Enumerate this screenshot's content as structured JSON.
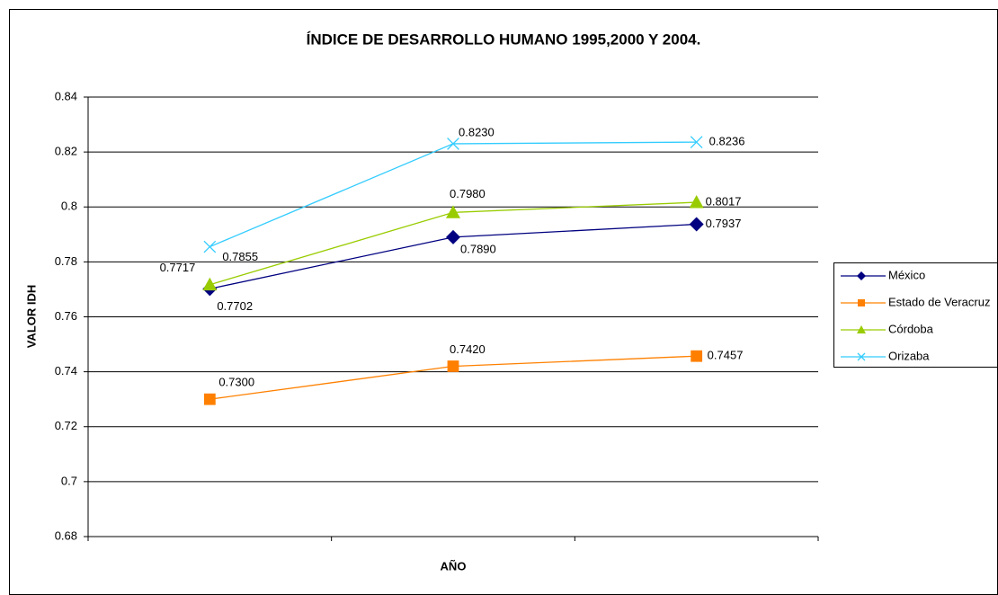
{
  "chart_data": {
    "type": "line",
    "title": "ÍNDICE DE DESARROLLO HUMANO 1995,2000 Y 2004.",
    "xlabel": "AÑO",
    "ylabel": "VALOR IDH",
    "categories": [
      null,
      null,
      null
    ],
    "series": [
      {
        "name": "México",
        "color": "#000080",
        "marker": "diamond",
        "values": [
          0.7702,
          0.789,
          0.7937
        ],
        "value_labels": [
          "0.7702",
          "0.7890",
          "0.7937"
        ]
      },
      {
        "name": "Estado de Veracruz",
        "color": "#ff8000",
        "marker": "square",
        "values": [
          0.73,
          0.742,
          0.7457
        ],
        "value_labels": [
          "0.7300",
          "0.7420",
          "0.7457"
        ]
      },
      {
        "name": "Córdoba",
        "color": "#99cc00",
        "marker": "triangle",
        "values": [
          0.7717,
          0.798,
          0.8017
        ],
        "value_labels": [
          "0.7717",
          "0.7980",
          "0.8017"
        ]
      },
      {
        "name": "Orizaba",
        "color": "#33ccff",
        "marker": "x",
        "values": [
          0.7855,
          0.823,
          0.8236
        ],
        "value_labels": [
          "0.7855",
          "0.8230",
          "0.8236"
        ]
      }
    ],
    "ylim": [
      0.68,
      0.84
    ],
    "yticks": [
      0.68,
      0.7,
      0.72,
      0.74,
      0.76,
      0.78,
      0.8,
      0.82,
      0.84
    ],
    "grid": true,
    "legend": "right"
  }
}
